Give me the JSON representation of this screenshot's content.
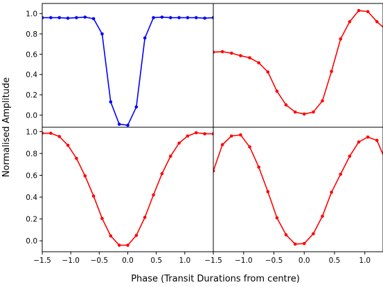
{
  "figure": {
    "xlabel": "Phase (Transit Durations from centre)",
    "ylabel": "Normalised Amplitude"
  },
  "chart_data": [
    {
      "type": "line",
      "panel": "top-left",
      "color": "#0000ff",
      "xlim": [
        -1.5,
        1.5
      ],
      "ylim": [
        -0.12,
        1.1
      ],
      "x_ticks": [],
      "y_ticks": [
        0.0,
        0.2,
        0.4,
        0.6,
        0.8,
        1.0
      ],
      "y_tick_labels": [
        "0.0",
        "0.2",
        "0.4",
        "0.6",
        "0.8",
        "1.0"
      ],
      "series": [
        {
          "x": [
            -1.5,
            -1.35,
            -1.2,
            -1.05,
            -0.9,
            -0.75,
            -0.6,
            -0.45,
            -0.3,
            -0.15,
            0.0,
            0.15,
            0.3,
            0.45,
            0.6,
            0.75,
            0.9,
            1.05,
            1.2,
            1.35,
            1.5
          ],
          "y": [
            0.96,
            0.96,
            0.96,
            0.955,
            0.96,
            0.965,
            0.95,
            0.8,
            0.13,
            -0.09,
            -0.1,
            0.08,
            0.76,
            0.96,
            0.965,
            0.96,
            0.96,
            0.96,
            0.96,
            0.955,
            0.96
          ]
        }
      ]
    },
    {
      "type": "line",
      "panel": "top-right",
      "color": "#ff0000",
      "xlim": [
        -1.5,
        1.3
      ],
      "ylim": [
        -0.12,
        1.1
      ],
      "x_ticks": [],
      "y_ticks": [],
      "y_tick_labels": [],
      "series": [
        {
          "x": [
            -1.5,
            -1.35,
            -1.2,
            -1.05,
            -0.9,
            -0.75,
            -0.6,
            -0.45,
            -0.3,
            -0.15,
            0.0,
            0.15,
            0.3,
            0.45,
            0.6,
            0.75,
            0.9,
            1.05,
            1.2,
            1.35
          ],
          "y": [
            0.62,
            0.625,
            0.61,
            0.585,
            0.565,
            0.515,
            0.425,
            0.235,
            0.1,
            0.03,
            0.01,
            0.03,
            0.14,
            0.43,
            0.75,
            0.92,
            1.03,
            1.02,
            0.92,
            0.84
          ]
        }
      ]
    },
    {
      "type": "line",
      "panel": "bottom-left",
      "color": "#ff0000",
      "xlim": [
        -1.5,
        1.5
      ],
      "ylim": [
        -0.1,
        1.04
      ],
      "x_ticks": [
        -1.5,
        -1.0,
        -0.5,
        0.0,
        0.5,
        1.0
      ],
      "x_tick_labels": [
        "−1.5",
        "−1.0",
        "−0.5",
        "0.0",
        "0.5",
        "1.0"
      ],
      "y_ticks": [
        0.0,
        0.2,
        0.4,
        0.6,
        0.8,
        1.0
      ],
      "y_tick_labels": [
        "0.0",
        "0.2",
        "0.4",
        "0.6",
        "0.8",
        "1.0"
      ],
      "series": [
        {
          "x": [
            -1.5,
            -1.35,
            -1.2,
            -1.05,
            -0.9,
            -0.75,
            -0.6,
            -0.45,
            -0.3,
            -0.15,
            0.0,
            0.15,
            0.3,
            0.45,
            0.6,
            0.75,
            0.9,
            1.05,
            1.2,
            1.35,
            1.5
          ],
          "y": [
            0.985,
            0.985,
            0.955,
            0.875,
            0.755,
            0.595,
            0.41,
            0.205,
            0.045,
            -0.04,
            -0.04,
            0.05,
            0.215,
            0.42,
            0.615,
            0.775,
            0.895,
            0.96,
            0.99,
            0.98,
            0.98
          ]
        }
      ]
    },
    {
      "type": "line",
      "panel": "bottom-right",
      "color": "#ff0000",
      "xlim": [
        -1.5,
        1.3
      ],
      "ylim": [
        -0.1,
        1.04
      ],
      "x_ticks": [
        -1.5,
        -1.0,
        -0.5,
        0.0,
        0.5,
        1.0
      ],
      "x_tick_labels": [
        "−1.5",
        "−1.0",
        "−0.5",
        "0.0",
        "0.5",
        "1.0"
      ],
      "y_ticks": [],
      "y_tick_labels": [],
      "series": [
        {
          "x": [
            -1.5,
            -1.35,
            -1.2,
            -1.05,
            -0.9,
            -0.75,
            -0.6,
            -0.45,
            -0.3,
            -0.15,
            0.0,
            0.15,
            0.3,
            0.45,
            0.6,
            0.75,
            0.9,
            1.05,
            1.2,
            1.35
          ],
          "y": [
            0.64,
            0.88,
            0.96,
            0.97,
            0.86,
            0.675,
            0.45,
            0.21,
            0.055,
            -0.03,
            -0.025,
            0.065,
            0.225,
            0.445,
            0.61,
            0.775,
            0.905,
            0.95,
            0.92,
            0.725
          ]
        }
      ]
    }
  ]
}
